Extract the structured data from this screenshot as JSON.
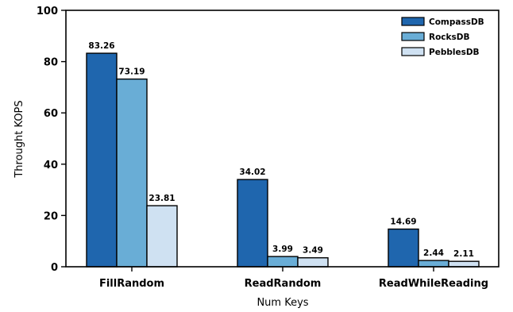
{
  "chart_data": {
    "type": "bar",
    "categories": [
      "FillRandom",
      "ReadRandom",
      "ReadWhileReading"
    ],
    "series": [
      {
        "name": "CompassDB",
        "values": [
          83.26,
          34.02,
          14.69
        ],
        "color": "#1f66ae"
      },
      {
        "name": "RocksDB",
        "values": [
          73.19,
          3.99,
          2.44
        ],
        "color": "#69add6"
      },
      {
        "name": "PebblesDB",
        "values": [
          23.81,
          3.49,
          2.11
        ],
        "color": "#cfe1f2"
      }
    ],
    "data_labels": [
      [
        "83.26",
        "34.02",
        "14.69"
      ],
      [
        "73.19",
        "3.99",
        "2.44"
      ],
      [
        "23.81",
        "3.49",
        "2.11"
      ]
    ],
    "xlabel": "Num Keys",
    "ylabel": "Throught KOPS",
    "ylim": [
      0,
      100
    ],
    "yticks": [
      0,
      20,
      40,
      60,
      80,
      100
    ],
    "grid": false,
    "legend_position": "top-right"
  }
}
